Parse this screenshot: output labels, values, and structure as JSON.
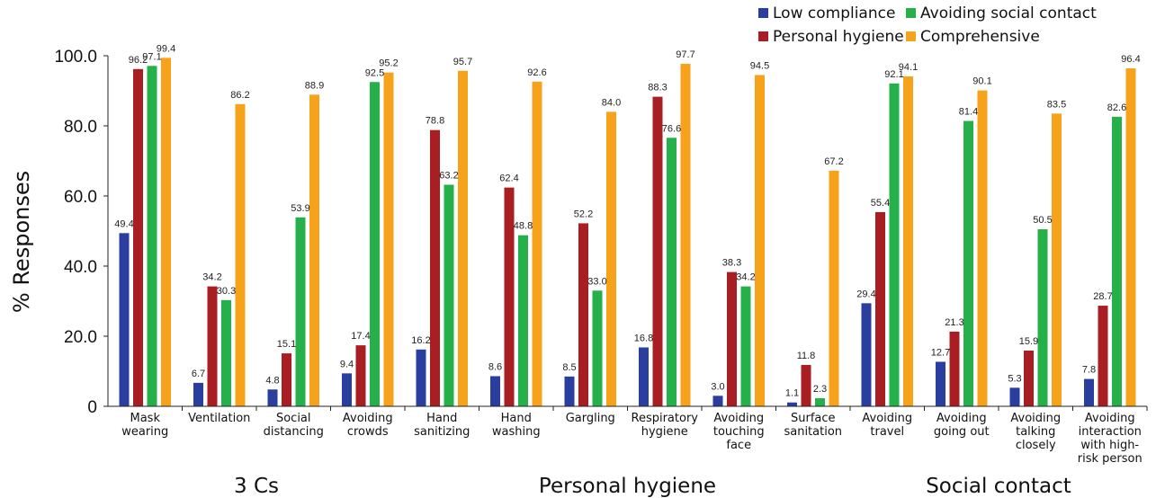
{
  "chart_data": {
    "type": "bar",
    "ylabel": "% Responses",
    "ylim": [
      0,
      100
    ],
    "yticks": [
      "0",
      "20.0",
      "40.0",
      "60.0",
      "80.0",
      "100.0"
    ],
    "legend_position": "top-right",
    "categories": [
      [
        "Mask",
        "wearing"
      ],
      [
        "Ventilation"
      ],
      [
        "Social",
        "distancing"
      ],
      [
        "Avoiding",
        "crowds"
      ],
      [
        "Hand",
        "sanitizing"
      ],
      [
        "Hand",
        "washing"
      ],
      [
        "Gargling"
      ],
      [
        "Respiratory",
        "hygiene"
      ],
      [
        "Avoiding",
        "touching",
        "face"
      ],
      [
        "Surface",
        "sanitation"
      ],
      [
        "Avoiding",
        "travel"
      ],
      [
        "Avoiding",
        "going out"
      ],
      [
        "Avoiding",
        "talking",
        "closely"
      ],
      [
        "Avoiding",
        "interaction",
        "with high-",
        "risk person"
      ]
    ],
    "series": [
      {
        "name": "Low compliance",
        "color": "#2a3ea0",
        "values": [
          49.4,
          6.7,
          4.8,
          9.4,
          16.2,
          8.6,
          8.5,
          16.8,
          3.0,
          1.1,
          29.4,
          12.7,
          5.3,
          7.8
        ],
        "labels": [
          "49.4",
          "6.7",
          "4.8",
          "9.4",
          "16.2",
          "8.6",
          "8.5",
          "16.8",
          "3.0",
          "1.1",
          "29.4",
          "12.7",
          "5.3",
          "7.8"
        ]
      },
      {
        "name": "Personal hygiene",
        "color": "#a81e22",
        "values": [
          96.2,
          34.2,
          15.1,
          17.4,
          78.8,
          62.4,
          52.2,
          88.3,
          38.3,
          11.8,
          55.4,
          21.3,
          15.9,
          28.7
        ],
        "labels": [
          "96.2",
          "34.2",
          "15.1",
          "17.4",
          "78.8",
          "62.4",
          "52.2",
          "88.3",
          "38.3",
          "11.8",
          "55.4",
          "21.3",
          "15.9",
          "28.7"
        ]
      },
      {
        "name": "Avoiding social contact",
        "color": "#25b04a",
        "values": [
          97.1,
          30.3,
          53.9,
          92.5,
          63.2,
          48.8,
          33.0,
          76.6,
          34.2,
          2.3,
          92.1,
          81.4,
          50.5,
          82.6
        ],
        "labels": [
          "97.1",
          "30.3",
          "53.9",
          "92.5",
          "63.2",
          "48.8",
          "33.0",
          "76.6",
          "34.2",
          "2.3",
          "92.1",
          "81.4",
          "50.5",
          "82.6"
        ]
      },
      {
        "name": "Comprehensive",
        "color": "#f7a21b",
        "values": [
          99.4,
          86.2,
          88.9,
          95.2,
          95.7,
          92.6,
          84.0,
          97.7,
          94.5,
          67.2,
          94.1,
          90.1,
          83.5,
          96.4
        ],
        "labels": [
          "99.4",
          "86.2",
          "88.9",
          "95.2",
          "95.7",
          "92.6",
          "84.0",
          "97.7",
          "94.5",
          "67.2",
          "94.1",
          "90.1",
          "83.5",
          "96.4"
        ]
      }
    ],
    "groups": [
      {
        "label": "3 Cs",
        "from": 0,
        "to": 3
      },
      {
        "label": "Personal hygiene",
        "from": 4,
        "to": 9
      },
      {
        "label": "Social contact",
        "from": 10,
        "to": 13
      }
    ]
  }
}
